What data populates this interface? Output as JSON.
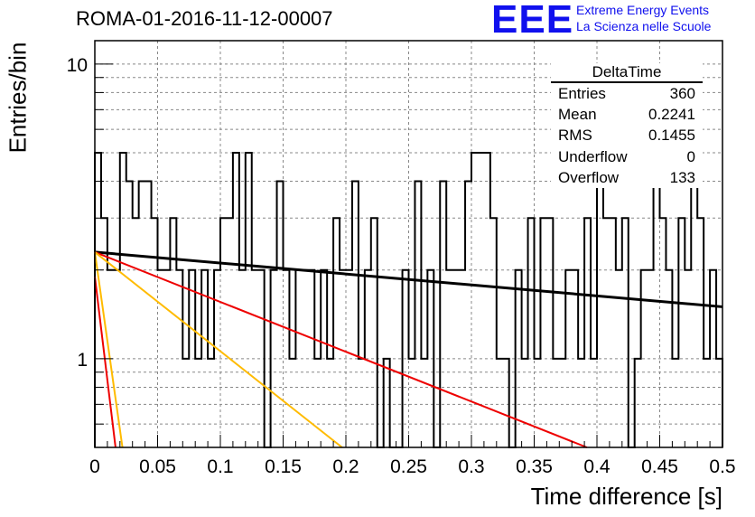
{
  "header": {
    "title": "ROMA-01-2016-11-12-00007",
    "logo_text": "EEE",
    "logo_line1": "Extreme Energy Events",
    "logo_line2": "La Scienza nelle Scuole"
  },
  "stats_box": {
    "title": "DeltaTime",
    "rows": [
      {
        "label": "Entries",
        "value": "360"
      },
      {
        "label": "Mean",
        "value": "0.2241"
      },
      {
        "label": "RMS",
        "value": "0.1455"
      },
      {
        "label": "Underflow",
        "value": "0"
      },
      {
        "label": "Overflow",
        "value": "133"
      }
    ]
  },
  "chart_data": {
    "type": "line",
    "xlabel": "Time difference [s]",
    "ylabel": "Entries/bin",
    "xlim": [
      0,
      0.5
    ],
    "ylim": [
      0.5,
      12
    ],
    "yscale": "log",
    "grid": true,
    "xticks": [
      "0",
      "0.05",
      "0.1",
      "0.15",
      "0.2",
      "0.25",
      "0.3",
      "0.35",
      "0.4",
      "0.45",
      "0.5"
    ],
    "yticks": [
      "1",
      "10"
    ],
    "histogram": {
      "bin_width": 0.005,
      "counts": [
        5,
        3,
        2,
        2,
        5,
        4,
        3,
        4,
        4,
        3,
        2,
        2,
        3,
        2,
        1,
        2,
        1,
        2,
        1,
        2,
        3,
        3,
        5,
        2,
        5,
        2,
        2,
        0,
        2,
        4,
        2,
        1,
        2,
        2,
        2,
        1,
        2,
        1,
        3,
        2,
        2,
        4,
        1,
        2,
        3,
        0,
        1,
        0,
        0,
        2,
        1,
        4,
        1,
        2,
        0,
        4,
        2,
        2,
        2,
        4,
        5,
        5,
        5,
        3,
        1,
        1,
        0,
        2,
        1,
        3,
        1,
        3,
        3,
        1,
        1,
        2,
        2,
        1,
        3,
        1,
        5,
        3,
        3,
        2,
        3,
        0,
        1,
        2,
        2,
        4,
        3,
        2,
        1,
        3,
        2,
        4,
        3,
        1,
        2,
        1
      ]
    },
    "fit_lines": [
      {
        "color": "#000000",
        "x": [
          0.0,
          0.5
        ],
        "y": [
          2.3,
          1.5
        ]
      },
      {
        "color": "#ee0000",
        "x": [
          0.0,
          0.392
        ],
        "y": [
          2.3,
          0.5
        ]
      },
      {
        "color": "#ffbb00",
        "x": [
          0.0,
          0.197
        ],
        "y": [
          2.3,
          0.5
        ]
      },
      {
        "color": "#ee0000",
        "x": [
          0.0,
          0.0165
        ],
        "y": [
          1.9,
          0.5
        ]
      },
      {
        "color": "#ffbb00",
        "x": [
          0.0,
          0.022
        ],
        "y": [
          2.3,
          0.5
        ]
      }
    ]
  }
}
